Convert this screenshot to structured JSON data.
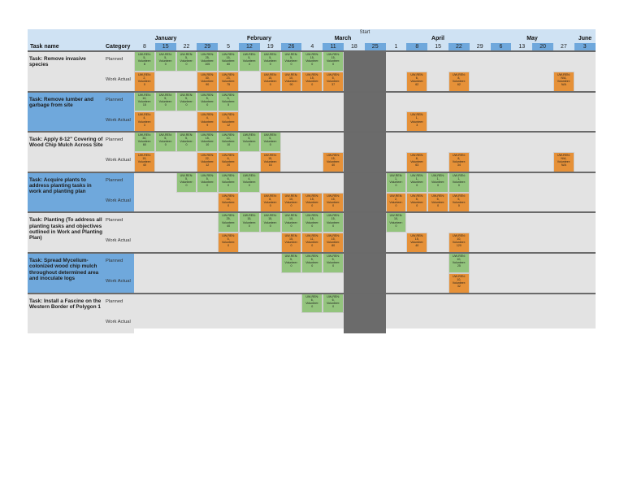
{
  "header": {
    "task_col": "Task name",
    "category_col": "Category",
    "start_marker": "Start",
    "months": [
      {
        "label": "January",
        "x": 0
      },
      {
        "label": "February",
        "x": 1
      },
      {
        "label": "March",
        "x": 2
      },
      {
        "label": "April",
        "x": 3
      },
      {
        "label": "May",
        "x": 4
      },
      {
        "label": "June",
        "x": 5
      }
    ],
    "weeks": [
      "8",
      "15",
      "22",
      "29",
      "5",
      "12",
      "19",
      "26",
      "4",
      "11",
      "18",
      "25",
      "1",
      "8",
      "15",
      "22",
      "29",
      "6",
      "13",
      "20",
      "27",
      "3"
    ],
    "highlighted_weeks": [
      1,
      3,
      5,
      7,
      9,
      11,
      13,
      15,
      17,
      19,
      21
    ]
  },
  "category_labels": {
    "planned": "Planned",
    "actual": "Work Actual"
  },
  "tasks": [
    {
      "name": "Task: Remove invasive species",
      "color": "#e3e3e3",
      "planned": [
        [
          0,
          "UW-REN:",
          "5,",
          "Volunteer:",
          "8"
        ],
        [
          1,
          "UW-REN:",
          "5,",
          "Volunteer:",
          "0"
        ],
        [
          2,
          "UW-REN:",
          "5,",
          "Volunteer:",
          "0"
        ],
        [
          3,
          "UW-REN:",
          "25,",
          "Volunteer:",
          "105"
        ],
        [
          4,
          "UW-REN:",
          "15,",
          "Volunteer:",
          "60"
        ],
        [
          5,
          "UW-REN:",
          "5,",
          "Volunteer:",
          "4"
        ],
        [
          6,
          "UW-REN:",
          "5,",
          "Volunteer:",
          "0"
        ],
        [
          7,
          "UW-REN:",
          "5,",
          "Volunteer:",
          "0"
        ],
        [
          8,
          "UW-REN:",
          "15,",
          "Volunteer:",
          "0"
        ],
        [
          9,
          "UW-REN:",
          "15,",
          "Volunteer:",
          "0"
        ]
      ],
      "actual": [
        [
          0,
          "UW-REN:",
          "2,",
          "Volunteer:",
          "0"
        ],
        [
          3,
          "UW-REN:",
          "30,",
          "Volunteer:",
          "90"
        ],
        [
          4,
          "UW-REN:",
          "23,",
          "Volunteer:",
          "75"
        ],
        [
          6,
          "UW-REN:",
          "15,",
          "Volunteer:",
          "0"
        ],
        [
          7,
          "UW-REN:",
          "10,",
          "Volunteer:",
          "90"
        ],
        [
          8,
          "UW-REN:",
          "15,",
          "Volunteer:",
          "0"
        ],
        [
          9,
          "UW-REN:",
          "5,",
          "Volunteer:",
          "37"
        ],
        [
          13,
          "UW-REN:",
          "6,",
          "Volunteer:",
          "62"
        ],
        [
          15,
          "UW-REN:",
          "8,",
          "Volunteer:",
          "62"
        ],
        [
          20,
          "UW-REN:",
          "N/A,",
          "Volunteer:",
          "N/A"
        ]
      ]
    },
    {
      "name": "Task: Remove lumber and garbage from site",
      "color": "#6fa8dc",
      "planned": [
        [
          0,
          "UW-REN:",
          "10,",
          "Volunteer:",
          "15"
        ],
        [
          1,
          "UW-REN:",
          "5,",
          "Volunteer:",
          "0"
        ],
        [
          2,
          "UW-REN:",
          "5,",
          "Volunteer:",
          "0"
        ],
        [
          3,
          "UW-REN:",
          "5,",
          "Volunteer:",
          "0"
        ],
        [
          4,
          "UW-REN:",
          "5,",
          "Volunteer:",
          "5"
        ]
      ],
      "actual": [
        [
          0,
          "UW-REN:",
          "4,",
          "Volunteer:",
          "3"
        ],
        [
          3,
          "UW-REN:",
          "4,",
          "Volunteer:",
          "9"
        ],
        [
          4,
          "UW-REN:",
          "5,",
          "Volunteer:",
          "12"
        ],
        [
          13,
          "UW-REN:",
          "1,",
          "Volunteer:",
          "3"
        ]
      ]
    },
    {
      "name": "Task: Apply 8-12\" Covering of Wood Chip Mulch Across Site",
      "color": "#e3e3e3",
      "planned": [
        [
          0,
          "UW-REN:",
          "30,",
          "Volunteer:",
          "60"
        ],
        [
          1,
          "UW-REN:",
          "5,",
          "Volunteer:",
          "0"
        ],
        [
          2,
          "UW-REN:",
          "5,",
          "Volunteer:",
          "0"
        ],
        [
          3,
          "UW-REN:",
          "15,",
          "Volunteer:",
          "10"
        ],
        [
          4,
          "UW-REN:",
          "10,",
          "Volunteer:",
          "10"
        ],
        [
          5,
          "UW-REN:",
          "5,",
          "Volunteer:",
          "0"
        ],
        [
          6,
          "UW-REN:",
          "5,",
          "Volunteer:",
          "0"
        ]
      ],
      "actual": [
        [
          0,
          "UW-REN:",
          "15,",
          "Volunteer:",
          "40"
        ],
        [
          3,
          "UW-REN:",
          "22,",
          "Volunteer:",
          "12"
        ],
        [
          4,
          "UW-REN:",
          "6,",
          "Volunteer:",
          "20"
        ],
        [
          6,
          "UW-REN:",
          "15,",
          "Volunteer:",
          "16"
        ],
        [
          9,
          "UW-REN:",
          "15,",
          "Volunteer:",
          "40"
        ],
        [
          13,
          "UW-REN:",
          "8,",
          "Volunteer:",
          "63"
        ],
        [
          15,
          "UW-REN:",
          "8,",
          "Volunteer:",
          "34"
        ],
        [
          20,
          "UW-REN:",
          "N/A,",
          "Volunteer:",
          "N/A"
        ]
      ]
    },
    {
      "name": "Task: Acquire plants to address planting tasks in work and planting plan",
      "color": "#6fa8dc",
      "planned": [
        [
          2,
          "UW-REN:",
          "5,",
          "Volunteer:",
          "0"
        ],
        [
          3,
          "UW-REN:",
          "5,",
          "Volunteer:",
          "0"
        ],
        [
          4,
          "UW-REN:",
          "6,",
          "Volunteer:",
          "0"
        ],
        [
          5,
          "UW-REN:",
          "4,",
          "Volunteer:",
          "0"
        ],
        [
          12,
          "UW-REN:",
          "1,",
          "Volunteer:",
          "0"
        ],
        [
          13,
          "UW-REN:",
          "1,",
          "Volunteer:",
          "0"
        ],
        [
          14,
          "UW-REN:",
          "1,",
          "Volunteer:",
          "0"
        ],
        [
          15,
          "UW-REN:",
          "1,",
          "Volunteer:",
          "0"
        ]
      ],
      "actual": [
        [
          4,
          "UW-REN:",
          "15,",
          "Volunteer:",
          "0"
        ],
        [
          6,
          "UW-REN:",
          "8,",
          "Volunteer:",
          "0"
        ],
        [
          7,
          "UW-REN:",
          "10,",
          "Volunteer:",
          "0"
        ],
        [
          8,
          "UW-REN:",
          "15,",
          "Volunteer:",
          "0"
        ],
        [
          9,
          "UW-REN:",
          "15,",
          "Volunteer:",
          "0"
        ],
        [
          12,
          "UW-REN:",
          "2,",
          "Volunteer:",
          "0"
        ],
        [
          13,
          "UW-REN:",
          "5,",
          "Volunteer:",
          "0"
        ],
        [
          14,
          "UW-REN:",
          "5,",
          "Volunteer:",
          "0"
        ],
        [
          15,
          "UW-REN:",
          "5,",
          "Volunteer:",
          "0"
        ]
      ]
    },
    {
      "name": "Task: Planting (To address all planting tasks and objectives outlined in Work and Planting Plan)",
      "color": "#e3e3e3",
      "planned": [
        [
          4,
          "UW-REN:",
          "25,",
          "Volunteer:",
          "40"
        ],
        [
          5,
          "UW-REN:",
          "15,",
          "Volunteer:",
          "0"
        ],
        [
          6,
          "UW-REN:",
          "15,",
          "Volunteer:",
          "0"
        ],
        [
          7,
          "UW-REN:",
          "10,",
          "Volunteer:",
          "0"
        ],
        [
          8,
          "UW-REN:",
          "15,",
          "Volunteer:",
          "0"
        ],
        [
          9,
          "UW-REN:",
          "15,",
          "Volunteer:",
          "0"
        ],
        [
          12,
          "UW-REN:",
          "10,",
          "Volunteer:",
          "0"
        ]
      ],
      "actual": [
        [
          4,
          "UW-REN:",
          "5,",
          "Volunteer:",
          "0"
        ],
        [
          7,
          "UW-REN:",
          "15,",
          "Volunteer:",
          "0"
        ],
        [
          8,
          "UW-REN:",
          "11,",
          "Volunteer:",
          "0"
        ],
        [
          9,
          "UW-REN:",
          "15,",
          "Volunteer:",
          "80"
        ],
        [
          13,
          "UW-REN:",
          "15,",
          "Volunteer:",
          "40"
        ],
        [
          15,
          "UW-REN:",
          "10,",
          "Volunteer:",
          "120"
        ]
      ]
    },
    {
      "name": "Task: Spread Mycelium-colonized wood chip mulch throughout determined area and inoculate logs",
      "color": "#6fa8dc",
      "planned": [
        [
          7,
          "UW-REN:",
          "5,",
          "Volunteer:",
          "0"
        ],
        [
          8,
          "UW-REN:",
          "5,",
          "Volunteer:",
          "0"
        ],
        [
          9,
          "UW-REN:",
          "5,",
          "Volunteer:",
          "0"
        ],
        [
          15,
          "UW-REN:",
          "10,",
          "Volunteer:",
          "25"
        ]
      ],
      "actual": [
        [
          15,
          "UW-REN:",
          "10,",
          "Volunteer:",
          "32"
        ]
      ]
    },
    {
      "name": "Task: Install a Fascine on the Western Border of Polygon 1",
      "color": "#e3e3e3",
      "planned": [
        [
          8,
          "UW-REN:",
          "6,",
          "Volunteer:",
          "0"
        ],
        [
          9,
          "UW-REN:",
          "6,",
          "Volunteer:",
          "0"
        ]
      ],
      "actual": []
    }
  ],
  "colors": {
    "planned": "#93c47d",
    "actual": "#e69138",
    "header_band": "#cfe2f3",
    "highlight_week": "#6fa8dc",
    "start_stripe": "#6b6b6b"
  }
}
